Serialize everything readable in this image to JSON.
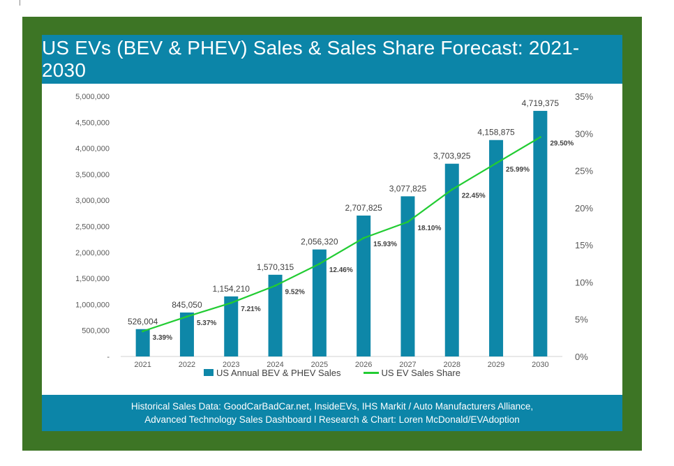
{
  "title": "US EVs (BEV & PHEV) Sales & Sales Share Forecast: 2021-2030",
  "footer": {
    "line1": "Historical Sales Data: GoodCarBadCar.net, InsideEVs, IHS Markit / Auto Manufacturers Alliance,",
    "line2": "Advanced Technology Sales Dashboard l Research & Chart: Loren McDonald/EVAdoption"
  },
  "colors": {
    "frame": "#3d7525",
    "header": "#0c85a8",
    "bar": "#0e87a8",
    "line": "#22cc33"
  },
  "chart_data": {
    "type": "bar",
    "categories": [
      "2021",
      "2022",
      "2023",
      "2024",
      "2025",
      "2026",
      "2027",
      "2028",
      "2029",
      "2030"
    ],
    "series": [
      {
        "name": "US Annual BEV & PHEV Sales",
        "type": "bar",
        "values": [
          526004,
          845050,
          1154210,
          1570315,
          2056320,
          2707825,
          3077825,
          3703925,
          4158875,
          4719375
        ],
        "labels": [
          "526,004",
          "845,050",
          "1,154,210",
          "1,570,315",
          "2,056,320",
          "2,707,825",
          "3,077,825",
          "3,703,925",
          "4,158,875",
          "4,719,375"
        ]
      },
      {
        "name": "US EV Sales Share",
        "type": "line",
        "axis": "right",
        "values": [
          3.39,
          5.37,
          7.21,
          9.52,
          12.46,
          15.93,
          18.1,
          22.45,
          25.99,
          29.5
        ],
        "labels": [
          "3.39%",
          "5.37%",
          "7.21%",
          "9.52%",
          "12.46%",
          "15.93%",
          "18.10%",
          "22.45%",
          "25.99%",
          "29.50%"
        ]
      }
    ],
    "y_left": {
      "ylim": [
        0,
        5000000
      ],
      "ticks": [
        "-",
        "500,000",
        "1,000,000",
        "1,500,000",
        "2,000,000",
        "2,500,000",
        "3,000,000",
        "3,500,000",
        "4,000,000",
        "4,500,000",
        "5,000,000"
      ]
    },
    "y_right": {
      "ylim": [
        0,
        35
      ],
      "ticks": [
        "0%",
        "5%",
        "10%",
        "15%",
        "20%",
        "25%",
        "30%",
        "35%"
      ]
    },
    "grid": false,
    "legend": "bottom"
  }
}
